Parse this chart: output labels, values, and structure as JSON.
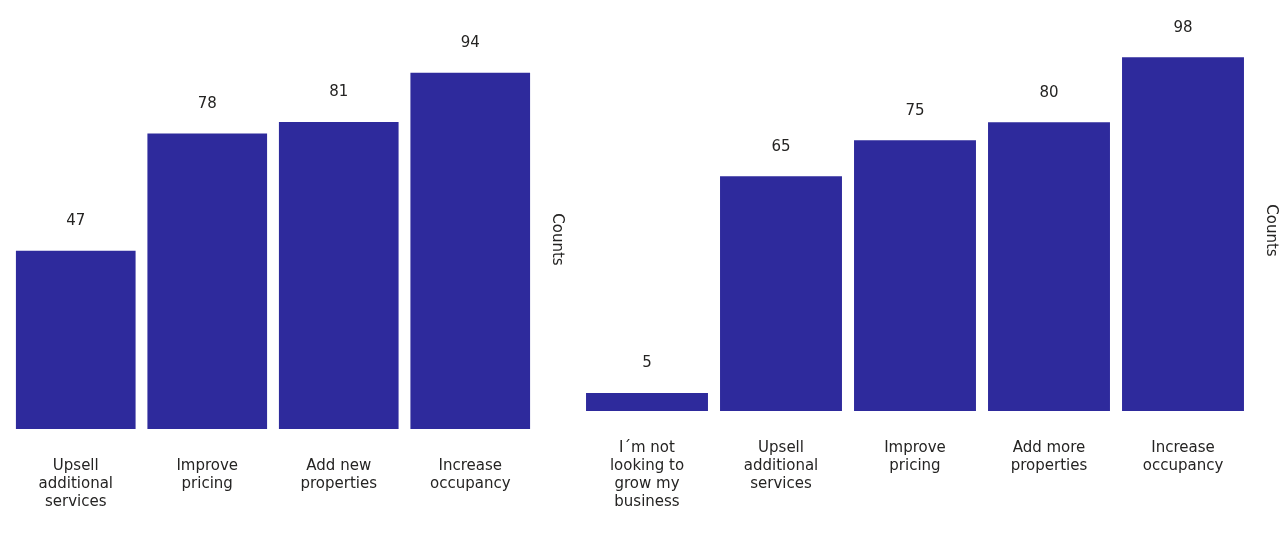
{
  "chart_data": [
    {
      "type": "bar",
      "categories": [
        "Upsell additional services",
        "Improve pricing",
        "Add new properties",
        "Increase occupancy"
      ],
      "values": [
        47,
        78,
        81,
        94
      ],
      "color": "#2e2a9c",
      "ylabel": "Counts",
      "data_labels": true,
      "tick_labels": "x"
    },
    {
      "type": "bar",
      "categories": [
        "I´m not looking to grow my business",
        "Upsell additional services",
        "Improve pricing",
        "Add more properties",
        "Increase occupancy"
      ],
      "values": [
        5,
        65,
        75,
        80,
        98
      ],
      "color": "#2e2a9c",
      "ylabel": "Counts",
      "data_labels": true,
      "tick_labels": "x"
    }
  ]
}
